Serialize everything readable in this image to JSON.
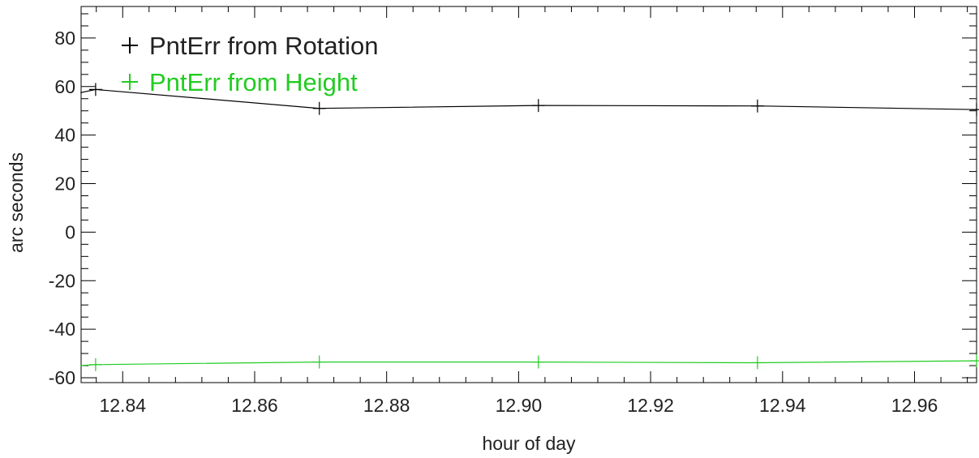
{
  "chart_data": {
    "type": "line",
    "title": "",
    "xlabel": "hour of day",
    "ylabel": "arc seconds",
    "xlim": [
      12.8337,
      12.9694
    ],
    "ylim": [
      -62,
      93
    ],
    "x_ticks": [
      12.84,
      12.86,
      12.88,
      12.9,
      12.92,
      12.94,
      12.96
    ],
    "x_tick_labels": [
      "12.84",
      "12.86",
      "12.88",
      "12.90",
      "12.92",
      "12.94",
      "12.96"
    ],
    "y_ticks": [
      -60,
      -40,
      -20,
      0,
      20,
      40,
      60,
      80
    ],
    "y_tick_labels": [
      "-60",
      "-40",
      "-20",
      "0",
      "20",
      "40",
      "60",
      "80"
    ],
    "grid": false,
    "legend_position": "top-left",
    "series": [
      {
        "name": "PntErr from Rotation",
        "marker": "+",
        "color": "#000000",
        "x": [
          12.8336,
          12.8359,
          12.8698,
          12.903,
          12.9362,
          12.9694
        ],
        "y": [
          57.5,
          58.8,
          51.0,
          52.2,
          52.0,
          50.5
        ]
      },
      {
        "name": "PntErr from Height",
        "marker": "+",
        "color": "#22cc22",
        "x": [
          12.8336,
          12.8359,
          12.8698,
          12.903,
          12.9362,
          12.9694
        ],
        "y": [
          -55.0,
          -54.6,
          -53.5,
          -53.5,
          -53.8,
          -53.0
        ]
      }
    ]
  }
}
